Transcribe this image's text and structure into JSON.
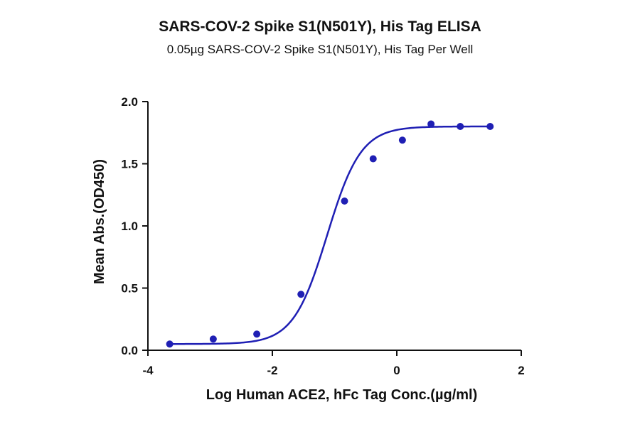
{
  "chart_data": {
    "type": "scatter",
    "title": "SARS-COV-2 Spike S1(N501Y), His Tag ELISA",
    "subtitle": "0.05µg SARS-COV-2 Spike S1(N501Y), His Tag Per Well",
    "xlabel": "Log Human ACE2, hFc Tag Conc.(µg/ml)",
    "ylabel": "Mean Abs.(OD450)",
    "xlim": [
      -4,
      2
    ],
    "ylim": [
      0,
      2.0
    ],
    "x_ticks": [
      "-4",
      "-2",
      "0",
      "2"
    ],
    "y_ticks": [
      "0.0",
      "0.5",
      "1.0",
      "1.5",
      "2.0"
    ],
    "grid": false,
    "marker_color": "#1f1fb4",
    "fit_color": "#1f1fb4",
    "points": [
      {
        "x": -3.65,
        "y": 0.05
      },
      {
        "x": -2.95,
        "y": 0.09
      },
      {
        "x": -2.25,
        "y": 0.13
      },
      {
        "x": -1.54,
        "y": 0.45
      },
      {
        "x": -0.84,
        "y": 1.2
      },
      {
        "x": -0.38,
        "y": 1.54
      },
      {
        "x": 0.09,
        "y": 1.69
      },
      {
        "x": 0.55,
        "y": 1.82
      },
      {
        "x": 1.02,
        "y": 1.8
      },
      {
        "x": 1.5,
        "y": 1.8
      }
    ],
    "fit_curve": {
      "model": "4PL",
      "bottom": 0.05,
      "top": 1.8,
      "logEC50": -1.12,
      "hill": 1.6,
      "x_range": [
        -3.65,
        1.5
      ]
    }
  }
}
